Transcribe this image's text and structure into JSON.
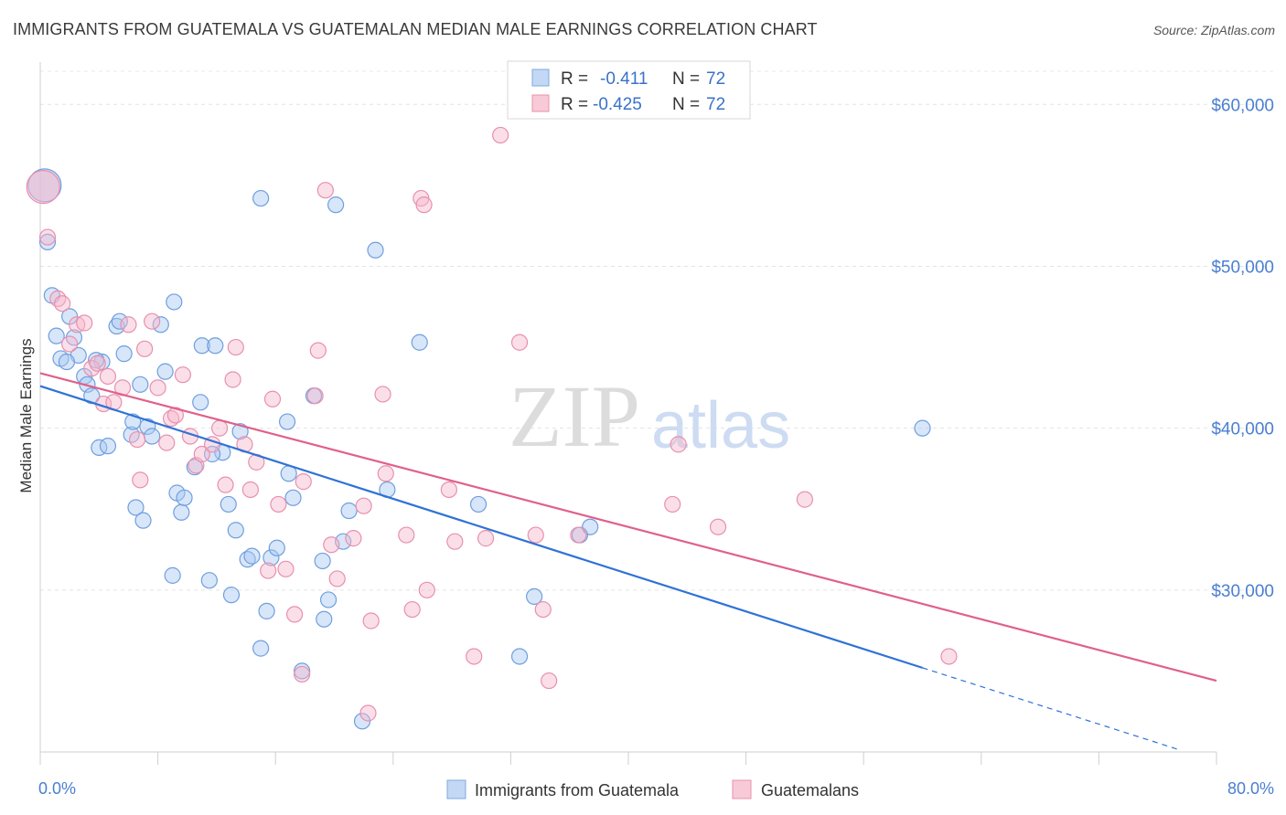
{
  "title": "IMMIGRANTS FROM GUATEMALA VS GUATEMALAN MEDIAN MALE EARNINGS CORRELATION CHART",
  "source": "Source: ZipAtlas.com",
  "watermark": {
    "zip": "ZIP",
    "atlas": "atlas"
  },
  "legend": {
    "rows": [
      {
        "r_label": "R =",
        "r_value": "-0.411",
        "n_label": "N =",
        "n_value": "72",
        "color": "#a9c8f2"
      },
      {
        "r_label": "R =",
        "r_value": "-0.425",
        "n_label": "N =",
        "n_value": "72",
        "color": "#f6b8cb"
      }
    ]
  },
  "chart_data": {
    "type": "scatter",
    "title": "IMMIGRANTS FROM GUATEMALA VS GUATEMALAN MEDIAN MALE EARNINGS CORRELATION CHART",
    "xlabel": "",
    "ylabel": "Median Male Earnings",
    "xlim": [
      0,
      80
    ],
    "ylim": [
      20000,
      62500
    ],
    "x_tick_labels": [
      "0.0%",
      "80.0%"
    ],
    "y_ticks": [
      30000,
      40000,
      50000,
      60000
    ],
    "y_tick_labels": [
      "$30,000",
      "$40,000",
      "$50,000",
      "$60,000"
    ],
    "grid": true,
    "legend_position": "top-center",
    "series": [
      {
        "name": "Immigrants from Guatemala",
        "color": "#a9c8f2",
        "stroke": "#6f9fde",
        "trend_color": "#2f72d6",
        "trend": {
          "x0": 0,
          "y0": 42600,
          "x1": 60,
          "y1": 25200,
          "x_dash_end": 77.5
        },
        "points": [
          {
            "x": 0.3,
            "y": 55000,
            "big": true
          },
          {
            "x": 0.5,
            "y": 51500
          },
          {
            "x": 0.8,
            "y": 48200
          },
          {
            "x": 1.1,
            "y": 45700
          },
          {
            "x": 1.4,
            "y": 44300
          },
          {
            "x": 2.0,
            "y": 46900
          },
          {
            "x": 2.3,
            "y": 45600
          },
          {
            "x": 2.6,
            "y": 44500
          },
          {
            "x": 3.0,
            "y": 43200
          },
          {
            "x": 3.2,
            "y": 42700
          },
          {
            "x": 3.5,
            "y": 42000
          },
          {
            "x": 4.2,
            "y": 44100
          },
          {
            "x": 4.0,
            "y": 38800
          },
          {
            "x": 4.6,
            "y": 38900
          },
          {
            "x": 5.2,
            "y": 46300
          },
          {
            "x": 5.4,
            "y": 46600
          },
          {
            "x": 5.7,
            "y": 44600
          },
          {
            "x": 6.2,
            "y": 39600
          },
          {
            "x": 6.3,
            "y": 40400
          },
          {
            "x": 6.8,
            "y": 42700
          },
          {
            "x": 7.3,
            "y": 40100
          },
          {
            "x": 7.6,
            "y": 39500
          },
          {
            "x": 8.2,
            "y": 46400
          },
          {
            "x": 8.5,
            "y": 43500
          },
          {
            "x": 9.1,
            "y": 47800
          },
          {
            "x": 9.3,
            "y": 36000
          },
          {
            "x": 9.6,
            "y": 34800
          },
          {
            "x": 9.8,
            "y": 35700
          },
          {
            "x": 10.5,
            "y": 37600
          },
          {
            "x": 10.9,
            "y": 41600
          },
          {
            "x": 11.0,
            "y": 45100
          },
          {
            "x": 11.9,
            "y": 45100
          },
          {
            "x": 12.4,
            "y": 38500
          },
          {
            "x": 12.8,
            "y": 35300
          },
          {
            "x": 13.3,
            "y": 33700
          },
          {
            "x": 13.6,
            "y": 39800
          },
          {
            "x": 14.1,
            "y": 31900
          },
          {
            "x": 14.4,
            "y": 32100
          },
          {
            "x": 15.0,
            "y": 26400
          },
          {
            "x": 15.4,
            "y": 28700
          },
          {
            "x": 15.7,
            "y": 32000
          },
          {
            "x": 16.1,
            "y": 32600
          },
          {
            "x": 16.9,
            "y": 37200
          },
          {
            "x": 16.8,
            "y": 40400
          },
          {
            "x": 17.2,
            "y": 35700
          },
          {
            "x": 17.8,
            "y": 25000
          },
          {
            "x": 18.6,
            "y": 42000
          },
          {
            "x": 19.2,
            "y": 31800
          },
          {
            "x": 19.3,
            "y": 28200
          },
          {
            "x": 19.6,
            "y": 29400
          },
          {
            "x": 20.6,
            "y": 33000
          },
          {
            "x": 21.0,
            "y": 34900
          },
          {
            "x": 21.9,
            "y": 21900
          },
          {
            "x": 22.8,
            "y": 51000
          },
          {
            "x": 23.6,
            "y": 36200
          },
          {
            "x": 25.8,
            "y": 45300
          },
          {
            "x": 29.8,
            "y": 35300
          },
          {
            "x": 32.6,
            "y": 25900
          },
          {
            "x": 33.6,
            "y": 29600
          },
          {
            "x": 36.7,
            "y": 33400
          },
          {
            "x": 37.4,
            "y": 33900
          },
          {
            "x": 60.0,
            "y": 40000
          },
          {
            "x": 15.0,
            "y": 54200
          },
          {
            "x": 20.1,
            "y": 53800
          },
          {
            "x": 6.5,
            "y": 35100
          },
          {
            "x": 7.0,
            "y": 34300
          },
          {
            "x": 9.0,
            "y": 30900
          },
          {
            "x": 11.5,
            "y": 30600
          },
          {
            "x": 13.0,
            "y": 29700
          },
          {
            "x": 3.8,
            "y": 44200
          },
          {
            "x": 1.8,
            "y": 44100
          },
          {
            "x": 11.7,
            "y": 38400
          }
        ]
      },
      {
        "name": "Guatemalans",
        "color": "#f6b8cb",
        "stroke": "#e890ad",
        "trend_color": "#e0608a",
        "trend": {
          "x0": 0,
          "y0": 43400,
          "x1": 80,
          "y1": 24400
        },
        "points": [
          {
            "x": 0.2,
            "y": 54900,
            "big": true
          },
          {
            "x": 0.5,
            "y": 51800
          },
          {
            "x": 1.2,
            "y": 48000
          },
          {
            "x": 1.5,
            "y": 47700
          },
          {
            "x": 2.0,
            "y": 45200
          },
          {
            "x": 2.5,
            "y": 46400
          },
          {
            "x": 3.0,
            "y": 46500
          },
          {
            "x": 3.5,
            "y": 43700
          },
          {
            "x": 3.9,
            "y": 44000
          },
          {
            "x": 4.3,
            "y": 41500
          },
          {
            "x": 4.6,
            "y": 43200
          },
          {
            "x": 5.0,
            "y": 41600
          },
          {
            "x": 5.6,
            "y": 42500
          },
          {
            "x": 6.0,
            "y": 46400
          },
          {
            "x": 6.6,
            "y": 39300
          },
          {
            "x": 6.8,
            "y": 36800
          },
          {
            "x": 7.1,
            "y": 44900
          },
          {
            "x": 7.6,
            "y": 46600
          },
          {
            "x": 8.0,
            "y": 42500
          },
          {
            "x": 8.6,
            "y": 39100
          },
          {
            "x": 8.9,
            "y": 40600
          },
          {
            "x": 9.7,
            "y": 43300
          },
          {
            "x": 10.2,
            "y": 39500
          },
          {
            "x": 10.6,
            "y": 37700
          },
          {
            "x": 11.0,
            "y": 38400
          },
          {
            "x": 11.7,
            "y": 39000
          },
          {
            "x": 12.2,
            "y": 40000
          },
          {
            "x": 12.6,
            "y": 36500
          },
          {
            "x": 13.1,
            "y": 43000
          },
          {
            "x": 13.3,
            "y": 45000
          },
          {
            "x": 13.9,
            "y": 39000
          },
          {
            "x": 14.3,
            "y": 36200
          },
          {
            "x": 14.7,
            "y": 37900
          },
          {
            "x": 15.5,
            "y": 31200
          },
          {
            "x": 15.8,
            "y": 41800
          },
          {
            "x": 16.2,
            "y": 35300
          },
          {
            "x": 16.7,
            "y": 31300
          },
          {
            "x": 17.3,
            "y": 28500
          },
          {
            "x": 17.8,
            "y": 24800
          },
          {
            "x": 17.9,
            "y": 36700
          },
          {
            "x": 18.7,
            "y": 42000
          },
          {
            "x": 18.9,
            "y": 44800
          },
          {
            "x": 19.4,
            "y": 54700
          },
          {
            "x": 19.8,
            "y": 32800
          },
          {
            "x": 20.2,
            "y": 30700
          },
          {
            "x": 21.3,
            "y": 33200
          },
          {
            "x": 22.0,
            "y": 35200
          },
          {
            "x": 22.3,
            "y": 22400
          },
          {
            "x": 22.5,
            "y": 28100
          },
          {
            "x": 23.3,
            "y": 42100
          },
          {
            "x": 23.5,
            "y": 37200
          },
          {
            "x": 24.9,
            "y": 33400
          },
          {
            "x": 25.3,
            "y": 28800
          },
          {
            "x": 25.9,
            "y": 54200
          },
          {
            "x": 26.1,
            "y": 53800
          },
          {
            "x": 26.3,
            "y": 30000
          },
          {
            "x": 27.8,
            "y": 36200
          },
          {
            "x": 28.2,
            "y": 33000
          },
          {
            "x": 29.5,
            "y": 25900
          },
          {
            "x": 30.3,
            "y": 33200
          },
          {
            "x": 31.3,
            "y": 58100
          },
          {
            "x": 32.6,
            "y": 45300
          },
          {
            "x": 33.7,
            "y": 33400
          },
          {
            "x": 34.2,
            "y": 28800
          },
          {
            "x": 34.6,
            "y": 24400
          },
          {
            "x": 36.6,
            "y": 33400
          },
          {
            "x": 43.0,
            "y": 35300
          },
          {
            "x": 43.4,
            "y": 39000
          },
          {
            "x": 46.1,
            "y": 33900
          },
          {
            "x": 52.0,
            "y": 35600
          },
          {
            "x": 61.8,
            "y": 25900
          },
          {
            "x": 9.2,
            "y": 40800
          }
        ]
      }
    ]
  }
}
